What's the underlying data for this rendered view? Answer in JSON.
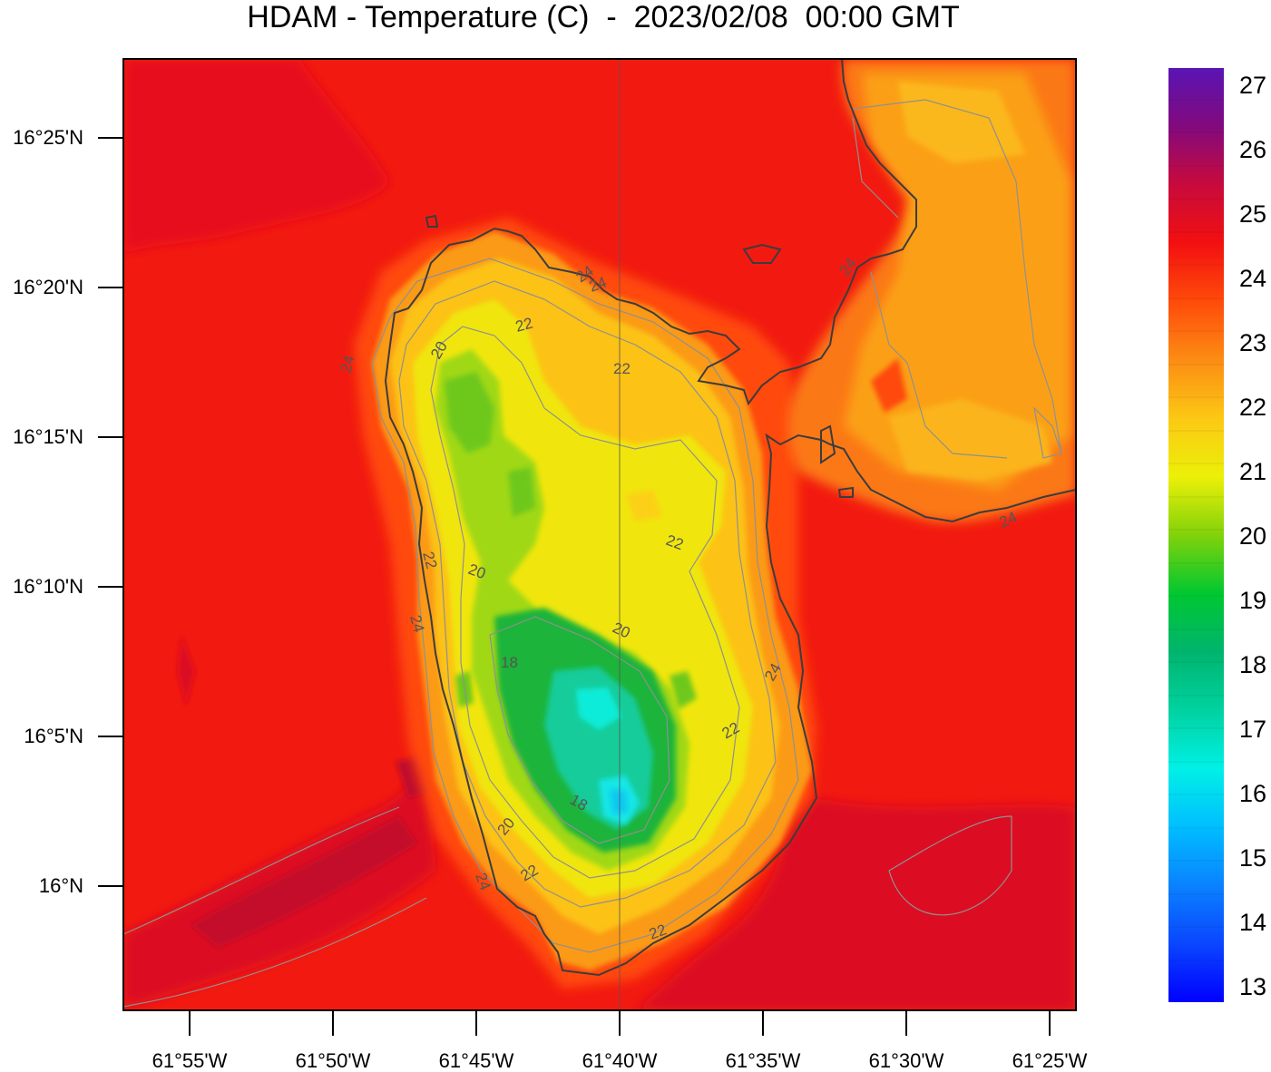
{
  "title": "HDAM - Temperature (C)  -  2023/02/08  00:00 GMT",
  "latitude_labels": [
    "16°25'N",
    "16°20'N",
    "16°15'N",
    "16°10'N",
    "16°5'N",
    "16°N"
  ],
  "longitude_labels": [
    "61°55'W",
    "61°50'W",
    "61°45'W",
    "61°40'W",
    "61°35'W",
    "61°30'W",
    "61°25'W"
  ],
  "colorbar": {
    "labels": [
      "27",
      "26",
      "25",
      "24",
      "23",
      "22",
      "21",
      "20",
      "19",
      "18",
      "17",
      "16",
      "15",
      "14",
      "13"
    ],
    "min": 13,
    "max": 27,
    "colors_low_to_high": [
      "#0000ff",
      "#0a46ff",
      "#0a82ff",
      "#00beff",
      "#00f0e6",
      "#00d2a0",
      "#00b46e",
      "#00c830",
      "#82d20a",
      "#ecf008",
      "#fcc814",
      "#fc8c14",
      "#ff4b0a",
      "#f21010",
      "#c80a3c",
      "#820a7d",
      "#5a14b4"
    ]
  },
  "contour_labels": [
    "24",
    "22",
    "22",
    "20",
    "22",
    "24",
    "22",
    "20",
    "22",
    "24",
    "20",
    "18",
    "24",
    "22",
    "18",
    "20",
    "24",
    "22",
    "24",
    "24",
    "24"
  ],
  "colors": {
    "sea": "#f21a10",
    "sea_warm": "#dc0a1e",
    "land_high": "#fa9d15",
    "coastline": "#3c3c3c",
    "contour": "#909090"
  }
}
